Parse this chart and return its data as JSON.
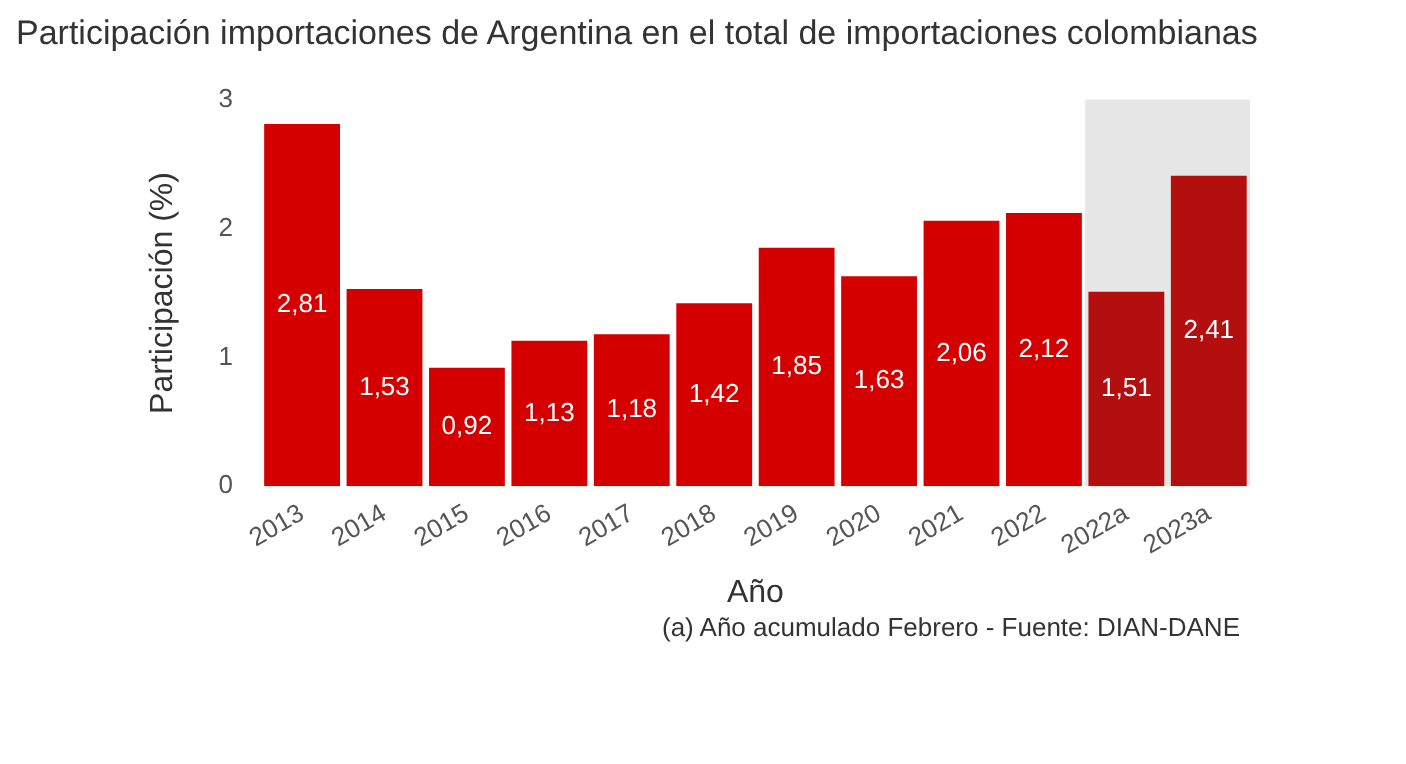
{
  "chart_data": {
    "type": "bar",
    "title": "Participación importaciones de Argentina en el total de importaciones colombianas",
    "xlabel": "Año",
    "ylabel": "Participación (%)",
    "categories": [
      "2013",
      "2014",
      "2015",
      "2016",
      "2017",
      "2018",
      "2019",
      "2020",
      "2021",
      "2022",
      "2022a",
      "2023a"
    ],
    "values": [
      2.81,
      1.53,
      0.92,
      1.13,
      1.18,
      1.42,
      1.85,
      1.63,
      2.06,
      2.12,
      1.51,
      2.41
    ],
    "value_labels": [
      "2,81",
      "1,53",
      "0,92",
      "1,13",
      "1,18",
      "1,42",
      "1,85",
      "1,63",
      "2,06",
      "2,12",
      "1,51",
      "2,41"
    ],
    "colors": [
      "#d40000",
      "#d40000",
      "#d40000",
      "#d40000",
      "#d40000",
      "#d40000",
      "#d40000",
      "#d40000",
      "#d40000",
      "#d40000",
      "#b30f0f",
      "#b30f0f"
    ],
    "ylim": [
      0,
      3
    ],
    "yticks": [
      0,
      1,
      2,
      3
    ],
    "grid": false,
    "legend": false,
    "bands": [
      {
        "axis": "x",
        "from": "2022a",
        "to": "2023a",
        "color": "#e6e6e6"
      }
    ],
    "annotations": [
      "(a) Año acumulado Febrero - Fuente: DIAN-DANE"
    ]
  }
}
